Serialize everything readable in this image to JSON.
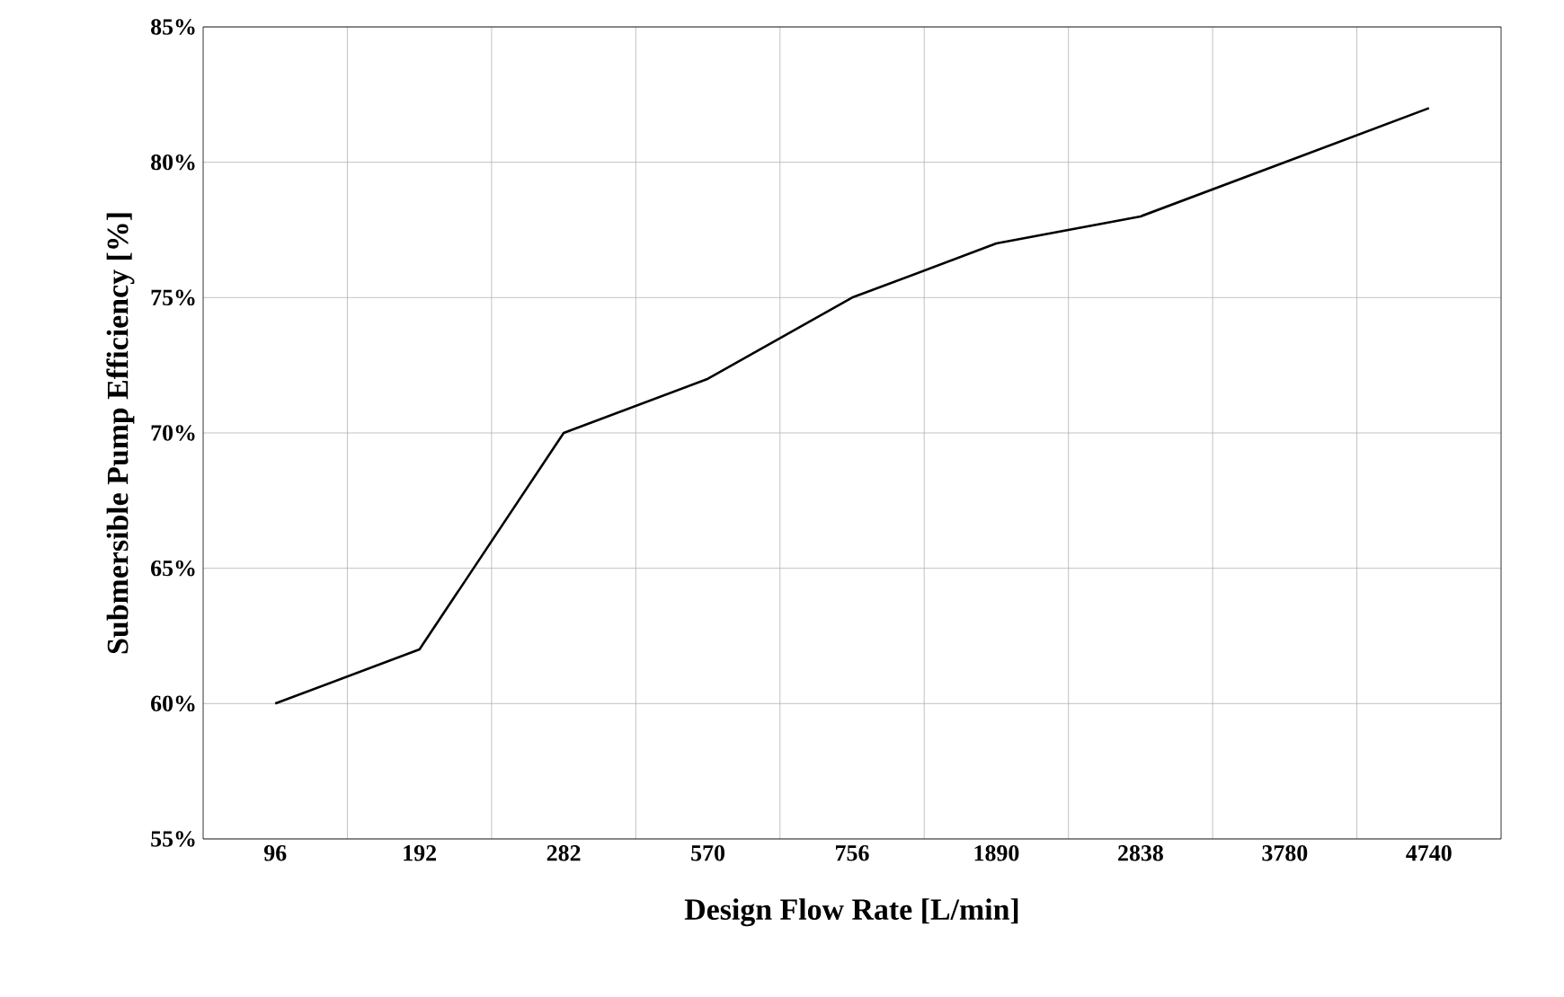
{
  "chart_data": {
    "type": "line",
    "xlabel": "Design Flow Rate [L/min]",
    "ylabel": "Submersible Pump Efficiency [%]",
    "categories": [
      "96",
      "192",
      "282",
      "570",
      "756",
      "1890",
      "2838",
      "3780",
      "4740"
    ],
    "series": [
      {
        "color": "#000000",
        "values": [
          60,
          62,
          70,
          72,
          75,
          77,
          78,
          80,
          82
        ]
      }
    ],
    "ylim": [
      55,
      85
    ],
    "yticks": [
      {
        "value": 55,
        "label": "55%"
      },
      {
        "value": 60,
        "label": "60%"
      },
      {
        "value": 65,
        "label": "65%"
      },
      {
        "value": 70,
        "label": "70%"
      },
      {
        "value": 75,
        "label": "75%"
      },
      {
        "value": 80,
        "label": "80%"
      },
      {
        "value": 85,
        "label": "85%"
      }
    ],
    "grid": true,
    "marker": "none",
    "line_style": "solid"
  }
}
